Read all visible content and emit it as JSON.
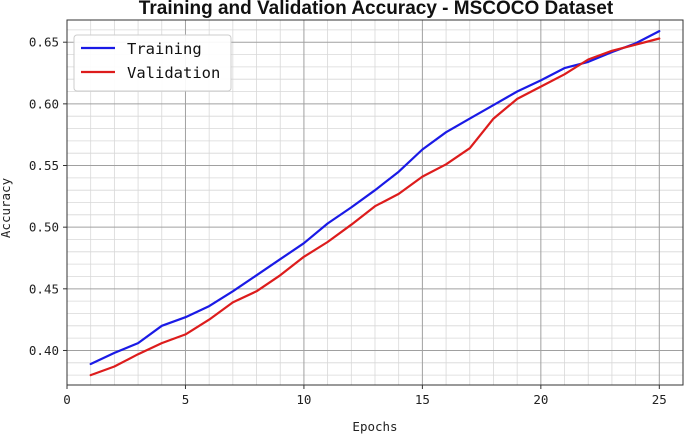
{
  "colors": {
    "training": "#1a1ae6",
    "validation": "#dd1c1c",
    "grid_major": "#a0a0a0",
    "grid_minor": "#d8d8d8",
    "frame": "#333333"
  },
  "chart_data": {
    "type": "line",
    "title": "Training and Validation Accuracy - MSCOCO Dataset",
    "xlabel": "Epochs",
    "ylabel": "Accuracy",
    "xlim": [
      0,
      26
    ],
    "ylim": [
      0.372,
      0.668
    ],
    "xticks": [
      "0",
      "5",
      "10",
      "15",
      "20",
      "25"
    ],
    "yticks": [
      "0.40",
      "0.45",
      "0.50",
      "0.55",
      "0.60",
      "0.65"
    ],
    "grid": true,
    "legend_position": "top-left",
    "x": [
      1,
      2,
      3,
      4,
      5,
      6,
      7,
      8,
      9,
      10,
      11,
      12,
      13,
      14,
      15,
      16,
      17,
      18,
      19,
      20,
      21,
      22,
      23,
      24,
      25
    ],
    "series": [
      {
        "name": "Training",
        "color": "#1a1ae6",
        "values": [
          0.389,
          0.398,
          0.406,
          0.42,
          0.427,
          0.436,
          0.448,
          0.461,
          0.474,
          0.487,
          0.503,
          0.516,
          0.53,
          0.545,
          0.563,
          0.577,
          0.588,
          0.599,
          0.61,
          0.619,
          0.629,
          0.634,
          0.642,
          0.649,
          0.659
        ]
      },
      {
        "name": "Validation",
        "color": "#dd1c1c",
        "values": [
          0.38,
          0.387,
          0.397,
          0.406,
          0.413,
          0.425,
          0.439,
          0.448,
          0.461,
          0.476,
          0.488,
          0.502,
          0.517,
          0.527,
          0.541,
          0.551,
          0.564,
          0.588,
          0.604,
          0.614,
          0.624,
          0.636,
          0.643,
          0.648,
          0.653
        ]
      }
    ]
  }
}
